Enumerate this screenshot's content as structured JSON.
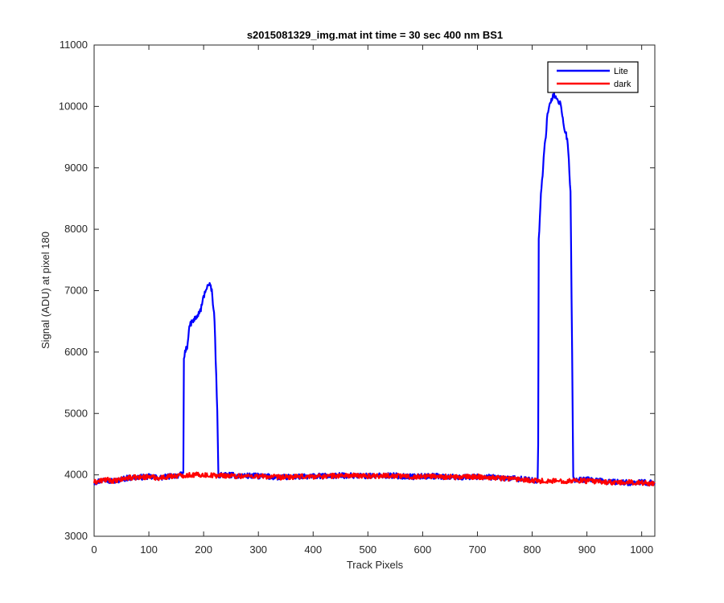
{
  "chart_data": {
    "type": "line",
    "title": "s2015081329_img.mat int time = 30 sec  400 nm BS1",
    "xlabel": "Track Pixels",
    "ylabel": "Signal (ADU) at pixel 180",
    "xlim": [
      0,
      1024
    ],
    "ylim": [
      3000,
      11000
    ],
    "xticks": [
      0,
      100,
      200,
      300,
      400,
      500,
      600,
      700,
      800,
      900,
      1000
    ],
    "yticks": [
      3000,
      4000,
      5000,
      6000,
      7000,
      8000,
      9000,
      10000,
      11000
    ],
    "grid": false,
    "legend_position": "top-right",
    "series": [
      {
        "name": "Lite",
        "color": "#0000ff",
        "x": [
          0,
          20,
          40,
          60,
          80,
          100,
          120,
          140,
          160,
          163,
          164,
          166,
          170,
          175,
          180,
          185,
          190,
          195,
          200,
          205,
          210,
          215,
          220,
          225,
          227,
          230,
          260,
          300,
          340,
          380,
          420,
          460,
          500,
          540,
          580,
          620,
          660,
          700,
          740,
          780,
          800,
          810,
          811,
          812,
          814,
          816,
          818,
          820,
          822,
          825,
          828,
          831,
          834,
          837,
          840,
          843,
          846,
          849,
          852,
          855,
          858,
          861,
          864,
          867,
          870,
          873,
          875,
          877,
          880,
          900,
          920,
          940,
          960,
          980,
          1000,
          1024
        ],
        "y": [
          3880,
          3920,
          3900,
          3950,
          3960,
          3970,
          3950,
          3980,
          4000,
          4020,
          5900,
          6000,
          6100,
          6450,
          6500,
          6550,
          6600,
          6700,
          6900,
          7050,
          7100,
          7000,
          6500,
          5000,
          4000,
          4000,
          3990,
          3980,
          3960,
          3970,
          3980,
          3990,
          3980,
          3990,
          3970,
          3980,
          3960,
          3970,
          3950,
          3930,
          3910,
          3900,
          4500,
          7800,
          8200,
          8600,
          8800,
          9000,
          9300,
          9500,
          9900,
          10000,
          10050,
          10150,
          10200,
          10150,
          10100,
          10050,
          10050,
          9850,
          9650,
          9600,
          9450,
          9100,
          8600,
          6000,
          3950,
          3920,
          3920,
          3920,
          3900,
          3890,
          3880,
          3870,
          3880,
          3860
        ],
        "noise": 45
      },
      {
        "name": "dark",
        "color": "#ff0000",
        "x": [
          0,
          20,
          40,
          60,
          80,
          100,
          120,
          140,
          160,
          180,
          200,
          220,
          240,
          260,
          300,
          340,
          380,
          420,
          460,
          500,
          540,
          580,
          620,
          660,
          700,
          740,
          780,
          800,
          820,
          860,
          880,
          900,
          920,
          940,
          960,
          980,
          1000,
          1024
        ],
        "y": [
          3880,
          3920,
          3900,
          3950,
          3960,
          3970,
          3950,
          3980,
          3990,
          4000,
          4000,
          3990,
          3990,
          3980,
          3980,
          3960,
          3970,
          3980,
          3990,
          3980,
          3990,
          3970,
          3980,
          3960,
          3970,
          3950,
          3930,
          3910,
          3900,
          3900,
          3910,
          3900,
          3890,
          3880,
          3870,
          3880,
          3870,
          3860
        ],
        "noise": 40
      }
    ]
  }
}
